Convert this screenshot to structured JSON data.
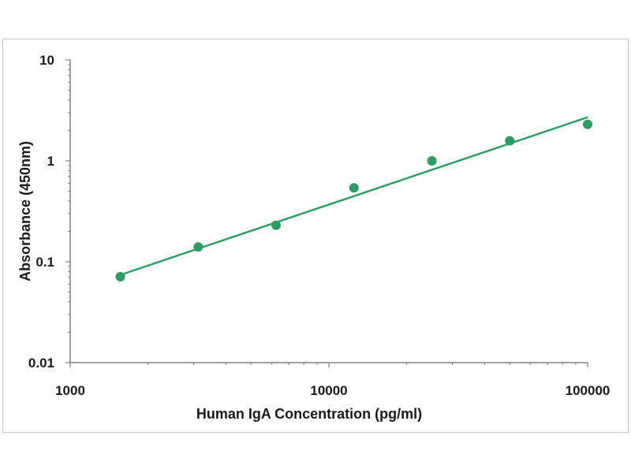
{
  "chart_data": {
    "type": "scatter",
    "title": "",
    "xlabel": "Human IgA Concentration (pg/ml)",
    "ylabel": "Absorbance (450nm)",
    "x_scale": "log",
    "y_scale": "log",
    "xlim": [
      1000,
      100000
    ],
    "ylim": [
      0.01,
      10
    ],
    "x_ticks": [
      "1000",
      "10000",
      "100000"
    ],
    "y_ticks": [
      "10",
      "1",
      "0.1",
      "0.01"
    ],
    "grid": false,
    "legend": "none",
    "series": [
      {
        "x": [
          1562.5,
          3125,
          6250,
          12500,
          25000,
          50000,
          100000
        ],
        "y": [
          0.071,
          0.14,
          0.23,
          0.54,
          1.0,
          1.58,
          2.3
        ],
        "color": "#2a9d63",
        "marker": "circle"
      }
    ],
    "fit_line": {
      "type": "power",
      "x": [
        1562.5,
        100000
      ],
      "y": [
        0.074,
        2.7
      ],
      "color": "#2a9d63"
    }
  }
}
